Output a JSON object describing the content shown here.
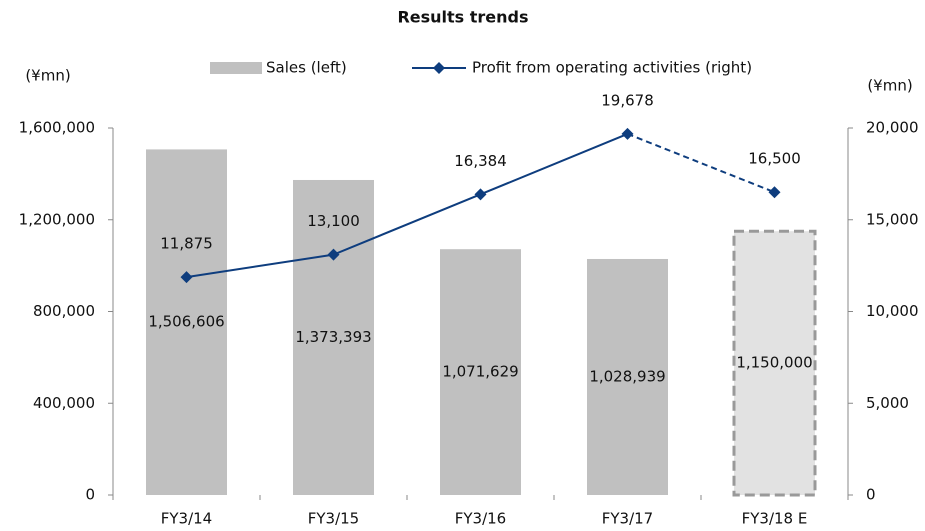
{
  "chart_data": {
    "type": "bar_line",
    "title": "Results trends",
    "y_unit": "(¥mn)",
    "y2_unit": "(¥mn)",
    "categories": [
      "FY3/14",
      "FY3/15",
      "FY3/16",
      "FY3/17",
      "FY3/18 E"
    ],
    "series": [
      {
        "name": "Sales (left)",
        "type": "bar",
        "color": "#c0c0c0",
        "values": [
          1506606,
          1373393,
          1071629,
          1028939,
          1150000
        ],
        "value_labels": [
          "1,506,606",
          "1,373,393",
          "1,071,629",
          "1,028,939",
          "1,150,000"
        ],
        "dashed": [
          false,
          false,
          false,
          false,
          true
        ]
      },
      {
        "name": "Profit from operating activities (right)",
        "type": "line",
        "axis": "y2",
        "color": "#0e3d7e",
        "values": [
          11875,
          13100,
          16384,
          19678,
          16500
        ],
        "value_labels": [
          "11,875",
          "13,100",
          "16,384",
          "19,678",
          "16,500"
        ],
        "dashed": [
          false,
          false,
          false,
          false,
          true
        ]
      }
    ],
    "ylim": [
      0,
      1600000
    ],
    "yticks": [
      0,
      {
        "value": 400000,
        "label": "400,000"
      },
      {
        "value": 800000,
        "label": "800,000"
      },
      {
        "value": 1200000,
        "label": "1,200,000"
      },
      {
        "value": 1600000,
        "label": "1,600,000"
      }
    ],
    "y2lim": [
      0,
      20000
    ],
    "y2ticks": [
      0,
      {
        "value": 5000,
        "label": "5,000"
      },
      {
        "value": 10000,
        "label": "10,000"
      },
      {
        "value": 15000,
        "label": "15,000"
      },
      {
        "value": 20000,
        "label": "20,000"
      }
    ],
    "grid": false,
    "legend": "top"
  }
}
